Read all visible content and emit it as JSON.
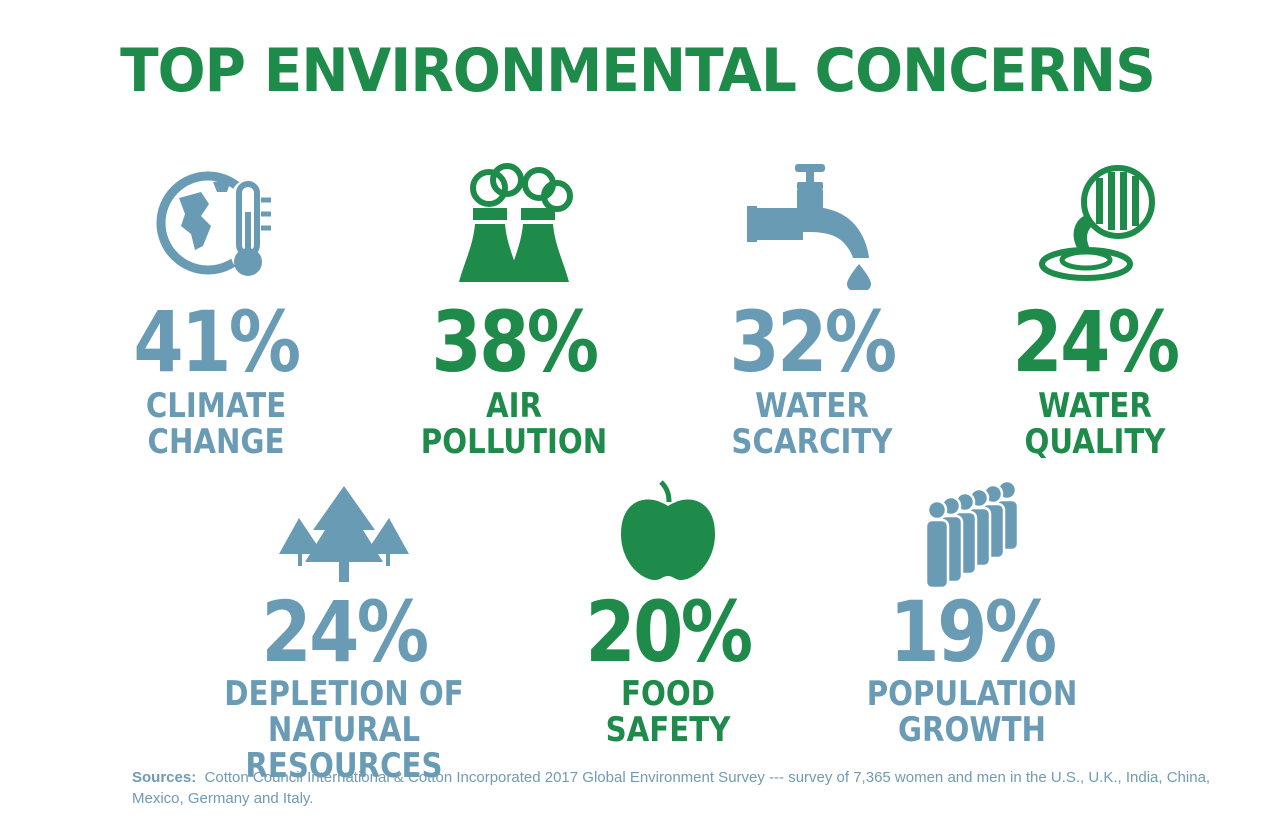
{
  "colors": {
    "green": "#1e8b4a",
    "blue": "#6a9bb5"
  },
  "title": "TOP ENVIRONMENTAL CONCERNS",
  "chart_data": {
    "type": "table",
    "title": "TOP ENVIRONMENTAL CONCERNS",
    "categories": [
      "CLIMATE CHANGE",
      "AIR POLLUTION",
      "WATER SCARCITY",
      "WATER QUALITY",
      "DEPLETION OF NATURAL RESOURCES",
      "FOOD SAFETY",
      "POPULATION GROWTH"
    ],
    "values": [
      41,
      38,
      32,
      24,
      24,
      20,
      19
    ],
    "unit": "%"
  },
  "stats": [
    {
      "pct": "41%",
      "line1": "CLIMATE",
      "line2": "CHANGE",
      "color": "blue",
      "icon": "globe-thermometer-icon"
    },
    {
      "pct": "38%",
      "line1": "AIR",
      "line2": "POLLUTION",
      "color": "green",
      "icon": "factory-smoke-icon"
    },
    {
      "pct": "32%",
      "line1": "WATER",
      "line2": "SCARCITY",
      "color": "blue",
      "icon": "faucet-drop-icon"
    },
    {
      "pct": "24%",
      "line1": "WATER",
      "line2": "QUALITY",
      "color": "green",
      "icon": "drain-pipe-icon"
    },
    {
      "pct": "24%",
      "line1": "DEPLETION OF",
      "line2": "NATURAL RESOURCES",
      "color": "blue",
      "icon": "trees-icon"
    },
    {
      "pct": "20%",
      "line1": "FOOD",
      "line2": "SAFETY",
      "color": "green",
      "icon": "apple-icon"
    },
    {
      "pct": "19%",
      "line1": "POPULATION",
      "line2": "GROWTH",
      "color": "blue",
      "icon": "crowd-icon"
    }
  ],
  "sources": {
    "label": "Sources:",
    "text": "Cotton Council International & Cotton Incorporated 2017 Global Environment Survey --- survey of 7,365 women and men in the U.S., U.K., India, China, Mexico, Germany and Italy."
  }
}
